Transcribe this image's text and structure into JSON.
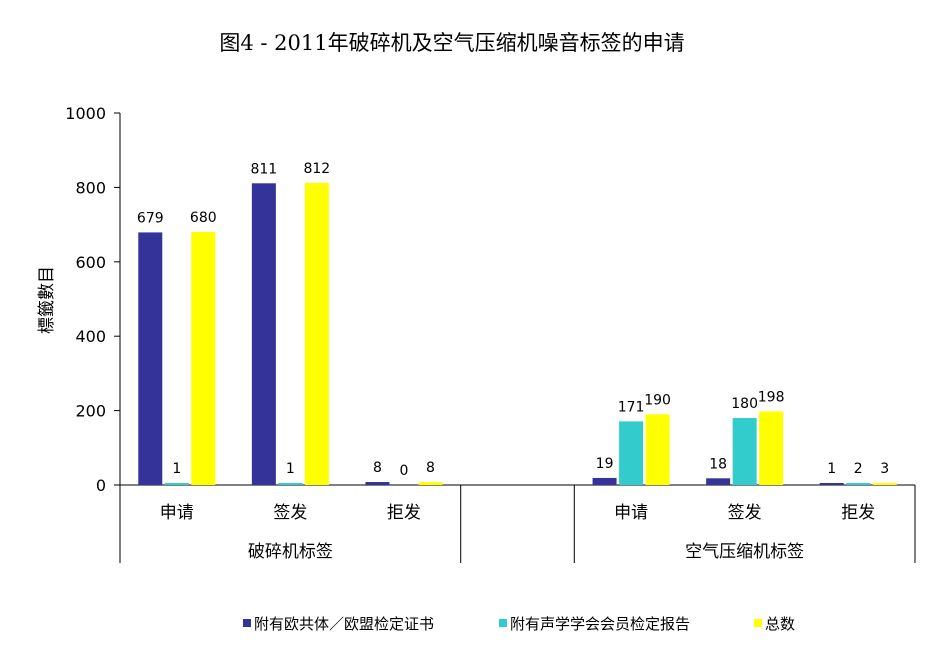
{
  "chart_data": {
    "type": "bar",
    "title": "图4 - 2011年破碎机及空气压缩机噪音标签的申请",
    "ylabel": "標籤數目",
    "xlabel": "",
    "ylim": [
      0,
      1000
    ],
    "yticks": [
      0,
      200,
      400,
      600,
      800,
      1000
    ],
    "grid": false,
    "legend_position": "bottom",
    "groups": [
      {
        "label": "破碎机标签",
        "categories": [
          "申请",
          "签发",
          "拒发"
        ]
      },
      {
        "label": "",
        "categories": [
          ""
        ]
      },
      {
        "label": "空气压缩机标签",
        "categories": [
          "申请",
          "签发",
          "拒发"
        ]
      }
    ],
    "categories": [
      "申请",
      "签发",
      "拒发",
      "",
      "申请",
      "签发",
      "拒发"
    ],
    "series": [
      {
        "name": "附有欧共体／欧盟检定证书",
        "color": "#333399",
        "values": [
          679,
          811,
          8,
          null,
          19,
          18,
          1
        ]
      },
      {
        "name": "附有声学学会会员检定报告",
        "color": "#33CCCC",
        "values": [
          1,
          1,
          0,
          null,
          171,
          180,
          2
        ]
      },
      {
        "name": "总数",
        "color": "#FFFF00",
        "values": [
          680,
          812,
          8,
          null,
          190,
          198,
          3
        ]
      }
    ]
  }
}
